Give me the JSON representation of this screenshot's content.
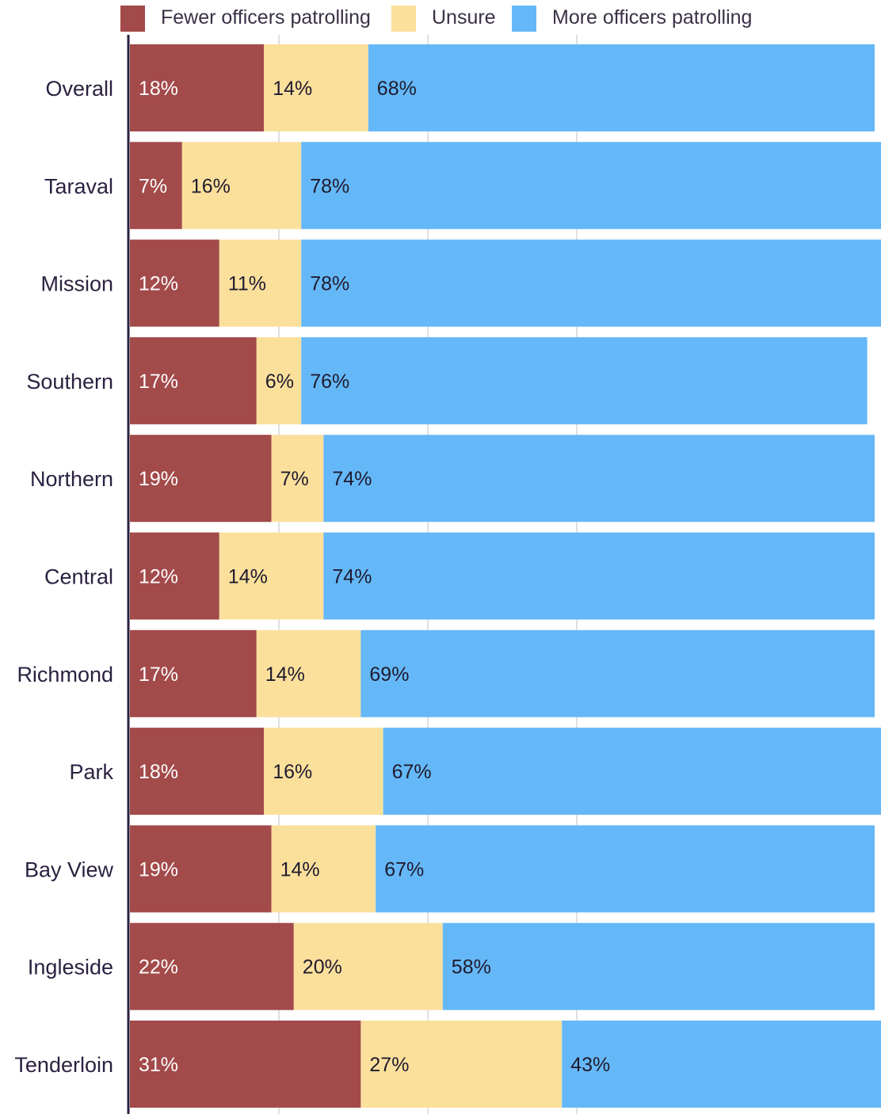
{
  "chart_data": {
    "type": "bar",
    "orientation": "horizontal",
    "stacked": true,
    "percent": true,
    "title": "",
    "xlabel": "",
    "ylabel": "",
    "xlim": [
      0,
      100
    ],
    "grid": true,
    "legend_position": "top",
    "categories": [
      "Overall",
      "Taraval",
      "Mission",
      "Southern",
      "Northern",
      "Central",
      "Richmond",
      "Park",
      "Bay View",
      "Ingleside",
      "Tenderloin"
    ],
    "series": [
      {
        "name": "Fewer officers patrolling",
        "color": "#a34a4a",
        "label_color": "#ffffff",
        "values": [
          18,
          7,
          12,
          17,
          19,
          12,
          17,
          18,
          19,
          22,
          31
        ]
      },
      {
        "name": "Unsure",
        "color": "#fbe09c",
        "label_color": "#1f1a2e",
        "values": [
          14,
          16,
          11,
          6,
          7,
          14,
          14,
          16,
          14,
          20,
          27
        ]
      },
      {
        "name": "More officers patrolling",
        "color": "#65b8f8",
        "label_color": "#1f1a2e",
        "values": [
          68,
          78,
          78,
          76,
          74,
          74,
          69,
          67,
          67,
          58,
          43
        ]
      }
    ],
    "gridline_color": "#d6d6d6",
    "axis_color": "#2b2140"
  }
}
